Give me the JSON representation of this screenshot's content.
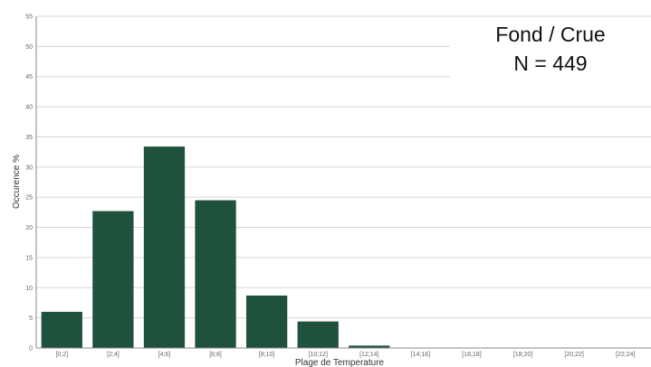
{
  "chart_data": {
    "type": "bar",
    "xlabel": "Plage de Temperature",
    "ylabel": "Occurence %",
    "categories": [
      "[0;2]",
      "[2;4]",
      "[4;6]",
      "[6;8]",
      "[8;10]",
      "[10;12]",
      "[12;14]",
      "[14;16]",
      "[16;18]",
      "[18;20]",
      "[20;22]",
      "[22;24]"
    ],
    "values": [
      6,
      22.7,
      33.4,
      24.5,
      8.7,
      4.4,
      0.4,
      0,
      0,
      0,
      0,
      0
    ],
    "ylim": [
      0,
      55
    ],
    "yticks": [
      0,
      5,
      10,
      15,
      20,
      25,
      30,
      35,
      40,
      45,
      50,
      55
    ],
    "grid": true,
    "bar_color": "#1f513c",
    "annotations": [
      "Fond / Crue",
      "N = 449"
    ]
  }
}
